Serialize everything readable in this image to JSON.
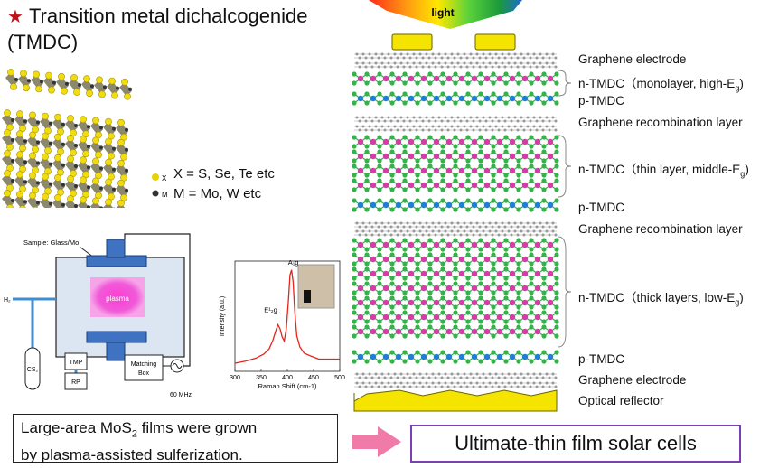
{
  "title": {
    "line1": "Transition metal dichalcogenide",
    "line2": "(TMDC)"
  },
  "legend": {
    "x_label": "X",
    "m_label": "M",
    "x_text": "X = S, Se, Te etc",
    "m_text": "M = Mo, W etc"
  },
  "apparatus": {
    "sample": "Sample: Glass/Mo",
    "h2": "H₂",
    "plasma": "plasma",
    "cs2": "CS₂",
    "tmp": "TMP",
    "rp": "RP",
    "matching1": "Matching",
    "matching2": "Box",
    "freq": "60 MHz"
  },
  "chart_data": {
    "type": "line",
    "xlabel": "Raman Shift (cm-1)",
    "ylabel": "Intensity (a.u.)",
    "xlim": [
      300,
      500
    ],
    "x_ticks": [
      "300",
      "350",
      "400",
      "450",
      "500"
    ],
    "peaks": [
      {
        "label": "E¹₂g",
        "x": 382
      },
      {
        "label": "A₁g",
        "x": 408
      }
    ],
    "series": [
      {
        "color": "#e8231a",
        "x": [
          300,
          320,
          340,
          355,
          365,
          372,
          378,
          382,
          386,
          390,
          394,
          398,
          402,
          405,
          408,
          411,
          414,
          418,
          424,
          432,
          445,
          460,
          480,
          500
        ],
        "y": [
          0.08,
          0.1,
          0.13,
          0.17,
          0.22,
          0.3,
          0.4,
          0.46,
          0.42,
          0.34,
          0.3,
          0.42,
          0.7,
          0.95,
          1.0,
          0.88,
          0.6,
          0.35,
          0.24,
          0.18,
          0.15,
          0.12,
          0.12,
          0.12
        ]
      }
    ]
  },
  "light": "light",
  "layers": {
    "graphene_top": "Graphene electrode",
    "n1": "n-TMDC（monolayer, high-E",
    "n1_sub": "g",
    "n1_end": ")",
    "p1": "p-TMDC",
    "recomb1": "Graphene recombination layer",
    "n2": "n-TMDC（thin layer, middle-E",
    "n2_sub": "g",
    "n2_end": ")",
    "p2": "p-TMDC",
    "recomb2": "Graphene recombination layer",
    "n3": "n-TMDC（thick layers, low-E",
    "n3_sub": "g",
    "n3_end": ")",
    "p3": "p-TMDC",
    "graphene_bottom": "Graphene electrode",
    "reflector": "Optical reflector"
  },
  "caption": {
    "l1a": "Large-area MoS",
    "l1sub": "2",
    "l1b": " films were grown",
    "l2": "by plasma-assisted  sulferization."
  },
  "result": "Ultimate-thin film solar cells",
  "colors": {
    "title_star": "#c0121a",
    "n_layer": "#d63ca8",
    "p_layer": "#1e7ed8",
    "bond": "#35b24a",
    "gold": "#f5e400",
    "arrow": "#f07aa8",
    "box": "#7a3fb0"
  }
}
